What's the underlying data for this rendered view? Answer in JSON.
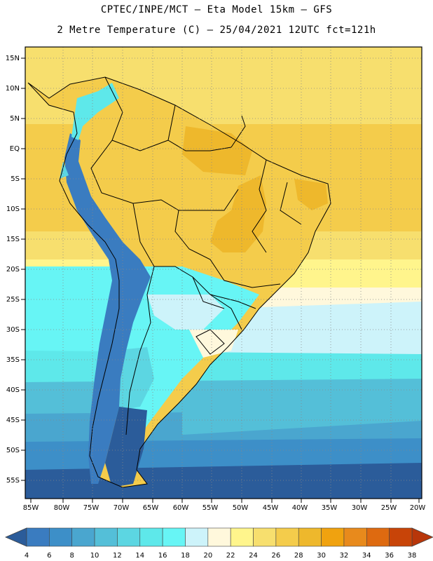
{
  "header": {
    "line1": "CPTEC/INPE/MCT –  Eta Model 15km – GFS",
    "line2": "2 Metre Temperature (C) – 25/04/2021 12UTC fct=121h"
  },
  "axes": {
    "lat_labels": [
      "15N",
      "10N",
      "5N",
      "EQ",
      "5S",
      "10S",
      "15S",
      "20S",
      "25S",
      "30S",
      "35S",
      "40S",
      "45S",
      "50S",
      "55S"
    ],
    "lon_labels": [
      "85W",
      "80W",
      "75W",
      "70W",
      "65W",
      "60W",
      "55W",
      "50W",
      "45W",
      "40W",
      "35W",
      "30W",
      "25W",
      "20W"
    ]
  },
  "legend": {
    "ticks": [
      "4",
      "6",
      "8",
      "10",
      "12",
      "14",
      "16",
      "18",
      "20",
      "22",
      "24",
      "26",
      "28",
      "30",
      "32",
      "34",
      "36",
      "38"
    ],
    "colors": [
      "#2b5c9a",
      "#3a7cc0",
      "#3d8fc8",
      "#4aa6cf",
      "#54bfd8",
      "#5cd6e2",
      "#5ee8ea",
      "#67f5f5",
      "#cdf3fa",
      "#fff8dc",
      "#fff58c",
      "#f7df6e",
      "#f4cc4b",
      "#eeb82c",
      "#f0a20f",
      "#e88a1c",
      "#de6a10",
      "#c84408",
      "#b8360a"
    ]
  },
  "colors": {
    "deep": "#2b5c9a",
    "cold1": "#3a7cc0",
    "cold2": "#4aa6cf",
    "cyan": "#5cd6e2",
    "pale": "#cdf3fa",
    "cream": "#fff8dc",
    "yellow": "#fff58c",
    "warm1": "#f7df6e",
    "warm2": "#f4cc4b",
    "warm3": "#eeb82c",
    "hot": "#f0a20f"
  }
}
